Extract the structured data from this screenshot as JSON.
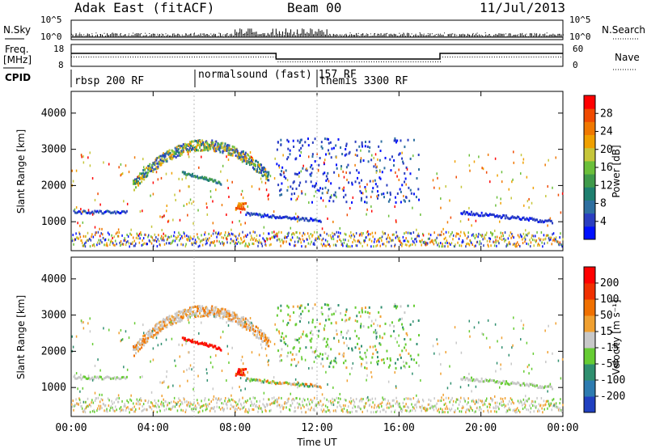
{
  "header": {
    "title": "Adak East (fitACF)",
    "beam": "Beam 00",
    "date": "11/Jul/2013"
  },
  "panels": {
    "nsky": {
      "label": "N.Sky",
      "ticks": [
        "10^5",
        "10^0"
      ],
      "right_label": "N.Search"
    },
    "freq": {
      "label_line1": "Freq.",
      "label_line2": "[MHz]",
      "ticks_left": [
        "18",
        "8"
      ],
      "ticks_right": [
        "60",
        "0"
      ],
      "right_label": "Nave"
    },
    "cpid": {
      "label": "CPID",
      "segments": [
        "rbsp 200 RF",
        "normalsound (fast) 157 RF",
        "themis 3300 RF"
      ]
    }
  },
  "chart_data": [
    {
      "type": "heatmap",
      "name": "power",
      "ylabel": "Slant Range [km]",
      "yticks": [
        1000,
        2000,
        3000,
        4000
      ],
      "ylim": [
        200,
        4600
      ],
      "xticks": [
        "00:00",
        "04:00",
        "08:00",
        "12:00",
        "16:00",
        "20:00",
        "00:00"
      ],
      "xlim_hours": [
        0,
        24
      ],
      "colorbar": {
        "label": "Power [dB]",
        "ticks": [
          4,
          8,
          12,
          16,
          20,
          24,
          28
        ],
        "colors": [
          "#0010ff",
          "#2a3ec0",
          "#2e6fa0",
          "#1e7f6f",
          "#3f9a4a",
          "#6bbf3a",
          "#c6c63a",
          "#f0a000",
          "#f07800",
          "#f04a00",
          "#ff0000"
        ]
      }
    },
    {
      "type": "heatmap",
      "name": "velocity",
      "ylabel": "Slant Range [km]",
      "yticks": [
        1000,
        2000,
        3000,
        4000
      ],
      "ylim": [
        200,
        4600
      ],
      "xlabel": "Time UT",
      "xticks": [
        "00:00",
        "04:00",
        "08:00",
        "12:00",
        "16:00",
        "20:00",
        "00:00"
      ],
      "xlim_hours": [
        0,
        24
      ],
      "colorbar": {
        "label": "Velocity [m s⁻¹]",
        "ticks": [
          "200",
          "100",
          "50",
          "15",
          "-15",
          "-50",
          "-100",
          "-200"
        ],
        "colors": [
          "#2040c0",
          "#2d7bb0",
          "#2f8f6f",
          "#66cc33",
          "#c8c8c8",
          "#f0a030",
          "#f07000",
          "#f03000",
          "#ff0000"
        ]
      }
    }
  ]
}
